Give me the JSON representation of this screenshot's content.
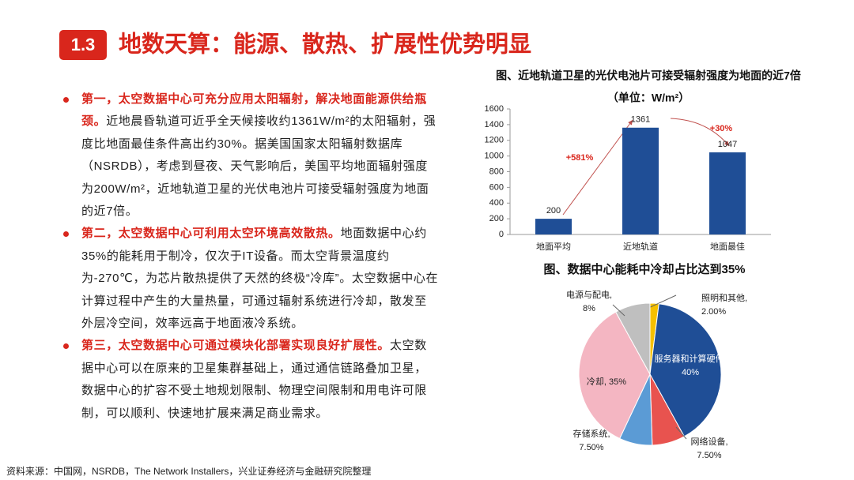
{
  "header": {
    "number": "1.3",
    "title": "地数天算：能源、散热、扩展性优势明显"
  },
  "bullets": [
    {
      "lead": "第一，太空数据中心可充分应用太阳辐射，解决地面能源供给瓶颈。",
      "text": "近地晨昏轨道可近乎全天候接收约1361W/m²的太阳辐射，强度比地面最佳条件高出约30%。据美国国家太阳辐射数据库（NSRDB），考虑到昼夜、天气影响后，美国平均地面辐射强度为200W/m²，近地轨道卫星的光伏电池片可接受辐射强度为地面的近7倍。"
    },
    {
      "lead": "第二，太空数据中心可利用太空环境高效散热。",
      "text": "地面数据中心约35%的能耗用于制冷，仅次于IT设备。而太空背景温度约为-270℃，为芯片散热提供了天然的终极“冷库”。太空数据中心在计算过程中产生的大量热量，可通过辐射系统进行冷却，散发至外层冷空间，效率远高于地面液冷系统。"
    },
    {
      "lead": "第三，太空数据中心可通过模块化部署实现良好扩展性。",
      "text": "太空数据中心可以在原来的卫星集群基础上，通过通信链路叠加卫星，数据中心的扩容不受土地规划限制、物理空间限制和用电许可限制，可以顺利、快速地扩展来满足商业需求。"
    }
  ],
  "source": "资料来源：中国网，NSRDB，The Network Installers，兴业证券经济与金融研究院整理",
  "chart_data": [
    {
      "type": "bar",
      "title": "图、近地轨道卫星的光伏电池片可接受辐射强度为地面的近7倍",
      "subtitle": "（单位：W/m²）",
      "categories": [
        "地面平均",
        "近地轨道",
        "地面最佳"
      ],
      "values": [
        200,
        1361,
        1047
      ],
      "color": "#1f4e96",
      "ylim": [
        0,
        1600
      ],
      "yticks": [
        0,
        200,
        400,
        600,
        800,
        1000,
        1200,
        1400,
        1600
      ],
      "grid": false,
      "annotations": [
        "+581%",
        "+30%"
      ]
    },
    {
      "type": "pie",
      "title": "图、数据中心能耗中冷却占比达到35%",
      "categories": [
        "照明和其他",
        "服务器和计算硬件",
        "网络设备",
        "存储系统",
        "冷却",
        "电源与配电"
      ],
      "values": [
        2,
        40,
        7.5,
        7.5,
        35,
        8
      ],
      "value_labels": [
        "2.00%",
        "40%",
        "7.50%",
        "7.50%",
        "35%",
        "8%"
      ],
      "colors": [
        "#f5c000",
        "#1f4e96",
        "#e8534f",
        "#5b9bd5",
        "#f4b6c2",
        "#bfbfbf"
      ]
    }
  ]
}
